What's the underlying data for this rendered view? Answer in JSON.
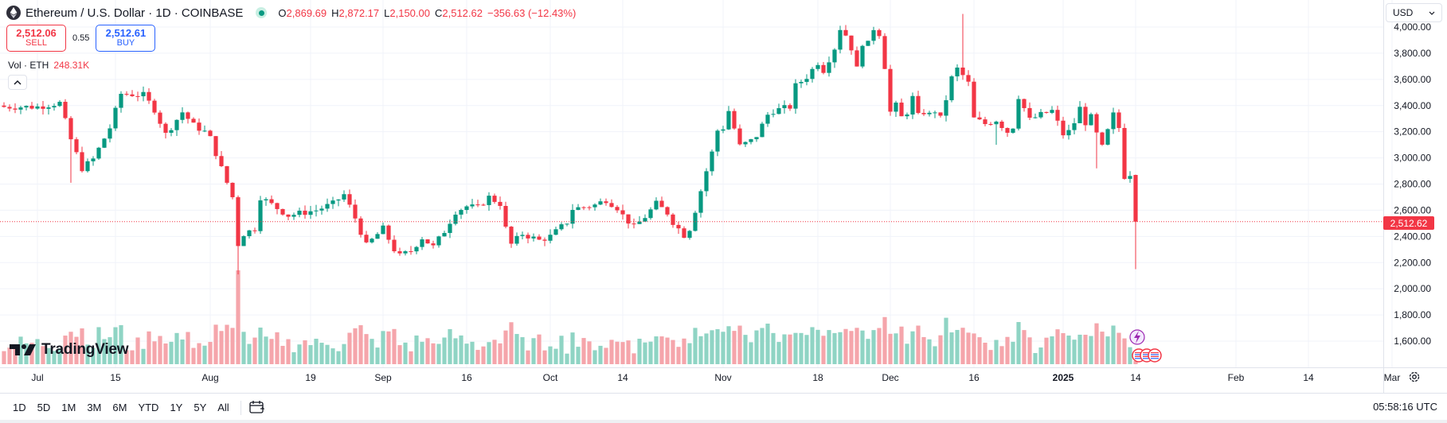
{
  "header": {
    "symbol": "Ethereum / U.S. Dollar · 1D · COINBASE",
    "ohlc": {
      "o": "2,869.69",
      "h": "2,872.17",
      "l": "2,150.00",
      "c": "2,512.62",
      "change": "−356.63 (−12.43%)"
    }
  },
  "trade": {
    "sell_price": "2,512.06",
    "sell_label": "SELL",
    "spread": "0.55",
    "buy_price": "2,512.61",
    "buy_label": "BUY"
  },
  "volume": {
    "label": "Vol · ETH",
    "value": "248.31K"
  },
  "currency": "USD",
  "last_price_tag": "2,512.62",
  "brand": "TradingView",
  "ranges": [
    "1D",
    "5D",
    "1M",
    "3M",
    "6M",
    "YTD",
    "1Y",
    "5Y",
    "All"
  ],
  "clock": "05:58:16 UTC",
  "colors": {
    "up": "#089981",
    "down": "#f23645",
    "up_vol": "#8fd4c4",
    "down_vol": "#f5a5ab"
  },
  "chart_data": {
    "type": "candlestick",
    "y_ticks": [
      "1,600.00",
      "1,800.00",
      "2,000.00",
      "2,200.00",
      "2,400.00",
      "2,600.00",
      "2,800.00",
      "3,000.00",
      "3,200.00",
      "3,400.00",
      "3,600.00",
      "3,800.00",
      "4,000.00"
    ],
    "ylim": [
      1450,
      4060
    ],
    "x_ticks": [
      {
        "label": "Jul",
        "day": 0,
        "bold": false
      },
      {
        "label": "15",
        "day": 14,
        "bold": false
      },
      {
        "label": "Aug",
        "day": 31,
        "bold": false
      },
      {
        "label": "19",
        "day": 49,
        "bold": false
      },
      {
        "label": "Sep",
        "day": 62,
        "bold": false
      },
      {
        "label": "16",
        "day": 77,
        "bold": false
      },
      {
        "label": "Oct",
        "day": 92,
        "bold": false
      },
      {
        "label": "14",
        "day": 105,
        "bold": false
      },
      {
        "label": "Nov",
        "day": 123,
        "bold": false
      },
      {
        "label": "18",
        "day": 140,
        "bold": false
      },
      {
        "label": "Dec",
        "day": 153,
        "bold": false
      },
      {
        "label": "16",
        "day": 168,
        "bold": false
      },
      {
        "label": "2025",
        "day": 184,
        "bold": true
      },
      {
        "label": "14",
        "day": 197,
        "bold": false
      },
      {
        "label": "Feb",
        "day": 215,
        "bold": false
      },
      {
        "label": "14",
        "day": 228,
        "bold": false
      },
      {
        "label": "Mar",
        "day": 243,
        "bold": false
      }
    ],
    "close_anchors": [
      [
        0,
        3390
      ],
      [
        4,
        3420
      ],
      [
        6,
        3140
      ],
      [
        8,
        2920
      ],
      [
        10,
        2990
      ],
      [
        12,
        3150
      ],
      [
        13,
        3230
      ],
      [
        15,
        3490
      ],
      [
        19,
        3480
      ],
      [
        21,
        3370
      ],
      [
        23,
        3180
      ],
      [
        26,
        3350
      ],
      [
        28,
        3250
      ],
      [
        30,
        3200
      ],
      [
        31,
        3150
      ],
      [
        33,
        2920
      ],
      [
        35,
        2700
      ],
      [
        36,
        2340
      ],
      [
        37,
        2420
      ],
      [
        39,
        2460
      ],
      [
        40,
        2700
      ],
      [
        45,
        2560
      ],
      [
        50,
        2600
      ],
      [
        53,
        2650
      ],
      [
        55,
        2720
      ],
      [
        57,
        2540
      ],
      [
        59,
        2330
      ],
      [
        62,
        2460
      ],
      [
        64,
        2300
      ],
      [
        65,
        2250
      ],
      [
        67,
        2290
      ],
      [
        69,
        2390
      ],
      [
        71,
        2320
      ],
      [
        73,
        2440
      ],
      [
        75,
        2590
      ],
      [
        77,
        2630
      ],
      [
        79,
        2620
      ],
      [
        81,
        2700
      ],
      [
        83,
        2650
      ],
      [
        84,
        2460
      ],
      [
        85,
        2340
      ],
      [
        87,
        2420
      ],
      [
        90,
        2370
      ],
      [
        92,
        2400
      ],
      [
        95,
        2510
      ],
      [
        96,
        2610
      ],
      [
        100,
        2640
      ],
      [
        102,
        2680
      ],
      [
        104,
        2620
      ],
      [
        105,
        2560
      ],
      [
        107,
        2470
      ],
      [
        109,
        2550
      ],
      [
        111,
        2650
      ],
      [
        113,
        2580
      ],
      [
        114,
        2510
      ],
      [
        116,
        2410
      ],
      [
        117,
        2460
      ],
      [
        118,
        2600
      ],
      [
        120,
        2900
      ],
      [
        121,
        3040
      ],
      [
        122,
        3210
      ],
      [
        123,
        3230
      ],
      [
        124,
        3360
      ],
      [
        126,
        3090
      ],
      [
        128,
        3130
      ],
      [
        129,
        3170
      ],
      [
        131,
        3330
      ],
      [
        132,
        3360
      ],
      [
        135,
        3390
      ],
      [
        136,
        3550
      ],
      [
        138,
        3620
      ],
      [
        140,
        3730
      ],
      [
        141,
        3670
      ],
      [
        143,
        3840
      ],
      [
        144,
        3990
      ],
      [
        145,
        3940
      ],
      [
        146,
        3840
      ],
      [
        147,
        3680
      ],
      [
        148,
        3880
      ],
      [
        149,
        3870
      ],
      [
        150,
        3990
      ],
      [
        151,
        3950
      ],
      [
        152,
        3700
      ],
      [
        153,
        3350
      ],
      [
        154,
        3400
      ],
      [
        155,
        3310
      ],
      [
        156,
        3350
      ],
      [
        157,
        3460
      ],
      [
        158,
        3320
      ],
      [
        159,
        3350
      ],
      [
        160,
        3330
      ],
      [
        161,
        3360
      ],
      [
        162,
        3300
      ],
      [
        163,
        3450
      ],
      [
        164,
        3610
      ],
      [
        165,
        3680
      ],
      [
        166,
        3630
      ],
      [
        167,
        3570
      ],
      [
        168,
        3300
      ],
      [
        170,
        3260
      ],
      [
        172,
        3290
      ],
      [
        174,
        3200
      ],
      [
        175,
        3240
      ],
      [
        176,
        3470
      ],
      [
        178,
        3290
      ],
      [
        180,
        3330
      ],
      [
        182,
        3360
      ],
      [
        184,
        3180
      ],
      [
        185,
        3200
      ],
      [
        186,
        3270
      ],
      [
        187,
        3380
      ],
      [
        188,
        3270
      ],
      [
        189,
        3310
      ],
      [
        190,
        3180
      ],
      [
        191,
        3080
      ],
      [
        193,
        3330
      ],
      [
        194,
        3230
      ],
      [
        195,
        2860
      ],
      [
        196,
        2880
      ],
      [
        197,
        2512
      ]
    ],
    "last_close": 2512.62
  }
}
